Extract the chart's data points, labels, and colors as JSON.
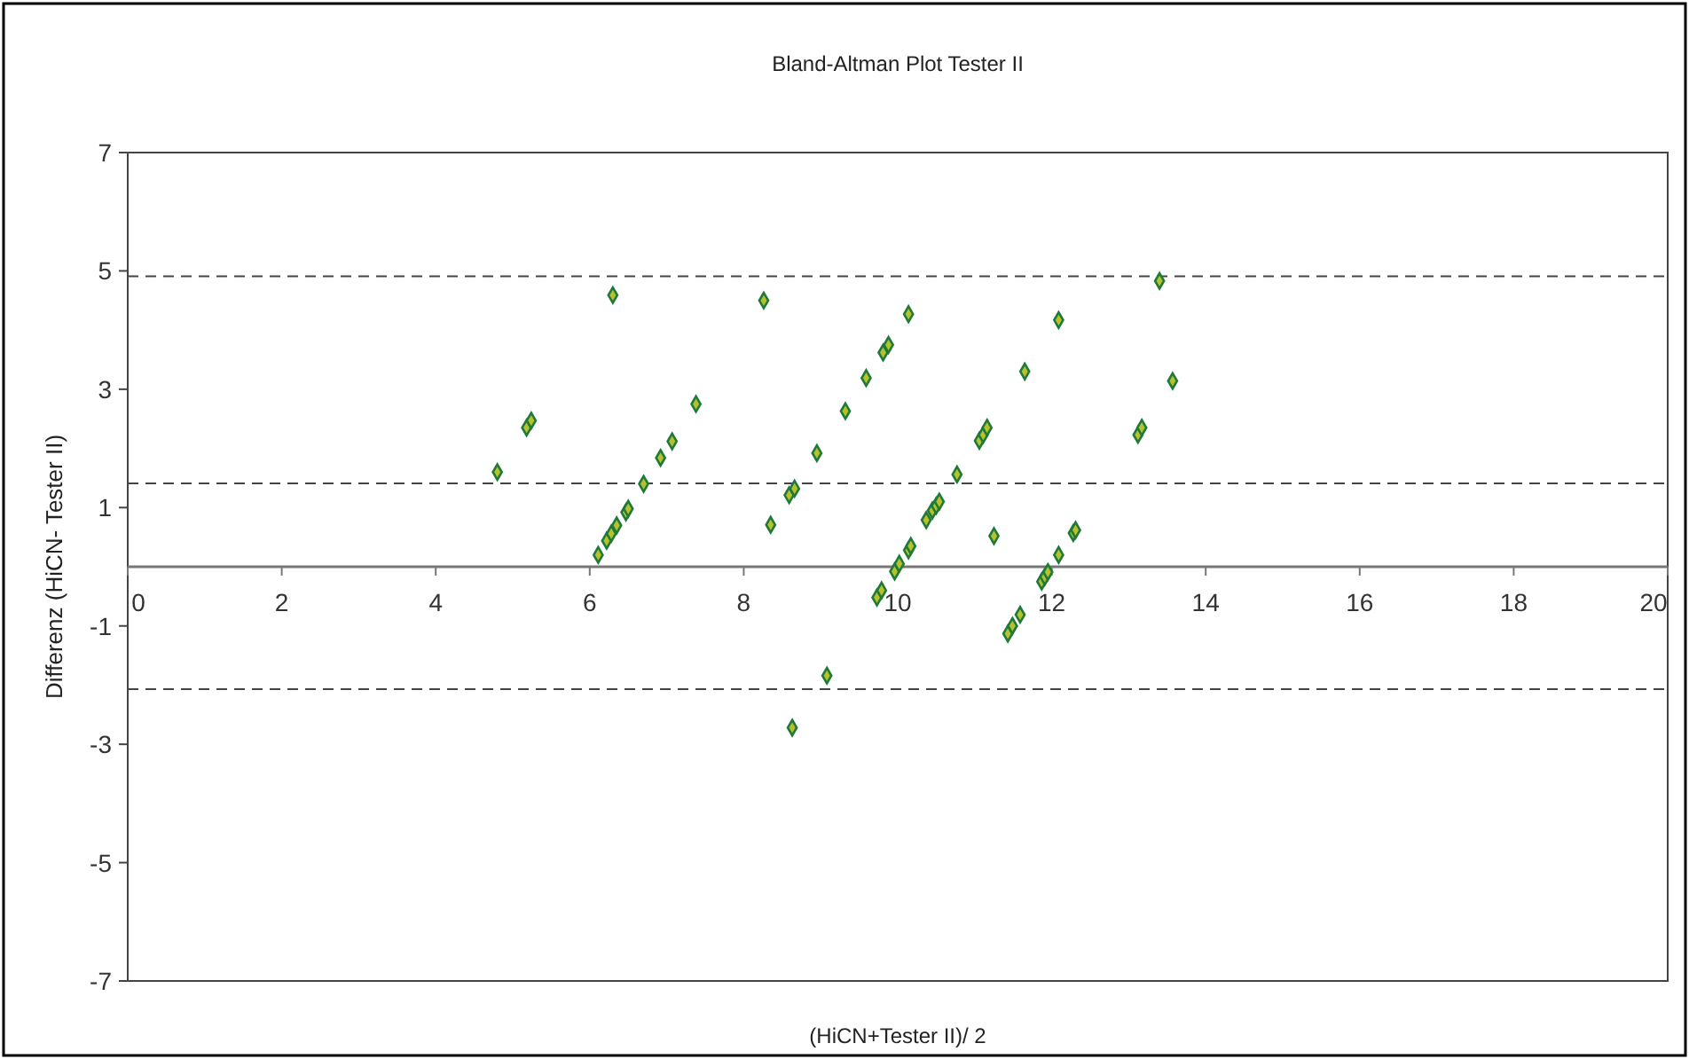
{
  "chart_data": {
    "type": "scatter",
    "title": "Bland-Altman Plot Tester II",
    "xlabel": "(HiCN+Tester II)/ 2",
    "ylabel": "Differenz (HiCN- Tester II)",
    "xlim": [
      0,
      20
    ],
    "xticks": [
      0,
      2,
      4,
      6,
      8,
      10,
      12,
      14,
      16,
      18,
      20
    ],
    "ylim": [
      -7,
      7
    ],
    "yticks": [
      -7,
      -5,
      -3,
      -1,
      1,
      3,
      5,
      7
    ],
    "grid": false,
    "marker": "diamond",
    "ref_lines": [
      {
        "axis": "y",
        "value": 4.91,
        "line_style": "dashed"
      },
      {
        "axis": "y",
        "value": 1.41,
        "line_style": "dashed"
      },
      {
        "axis": "y",
        "value": -2.07,
        "line_style": "dashed"
      }
    ],
    "series": [
      {
        "color": "#1f7a3a",
        "x": [
          4.8,
          5.18,
          5.24,
          6.3,
          6.11,
          6.22,
          6.28,
          6.35,
          6.47,
          6.5,
          6.7,
          6.92,
          7.07,
          7.38,
          8.26,
          8.35,
          8.59,
          8.66,
          8.95,
          9.32,
          9.59,
          9.81,
          9.88,
          10.14,
          9.08,
          8.63,
          9.73,
          9.79,
          9.96,
          10.02,
          10.14,
          10.17,
          10.37,
          10.45,
          10.5,
          10.54,
          10.77,
          11.06,
          11.11,
          11.16,
          11.65,
          12.09,
          11.25,
          12.09,
          12.28,
          12.31,
          11.87,
          11.91,
          11.95,
          11.43,
          11.49,
          11.59,
          13.12,
          13.17,
          13.4,
          13.57
        ],
        "values": [
          1.6,
          2.35,
          2.47,
          4.59,
          0.2,
          0.44,
          0.56,
          0.7,
          0.92,
          0.98,
          1.4,
          1.84,
          2.12,
          2.75,
          4.5,
          0.71,
          1.21,
          1.32,
          1.92,
          2.63,
          3.19,
          3.62,
          3.75,
          4.27,
          -1.84,
          -2.72,
          -0.52,
          -0.4,
          -0.08,
          0.05,
          0.28,
          0.35,
          0.79,
          0.95,
          1.03,
          1.1,
          1.56,
          2.13,
          2.23,
          2.35,
          3.3,
          4.17,
          0.52,
          0.2,
          0.57,
          0.62,
          -0.25,
          -0.17,
          -0.09,
          -1.13,
          -1.0,
          -0.81,
          2.23,
          2.35,
          4.83,
          3.14
        ]
      }
    ]
  }
}
